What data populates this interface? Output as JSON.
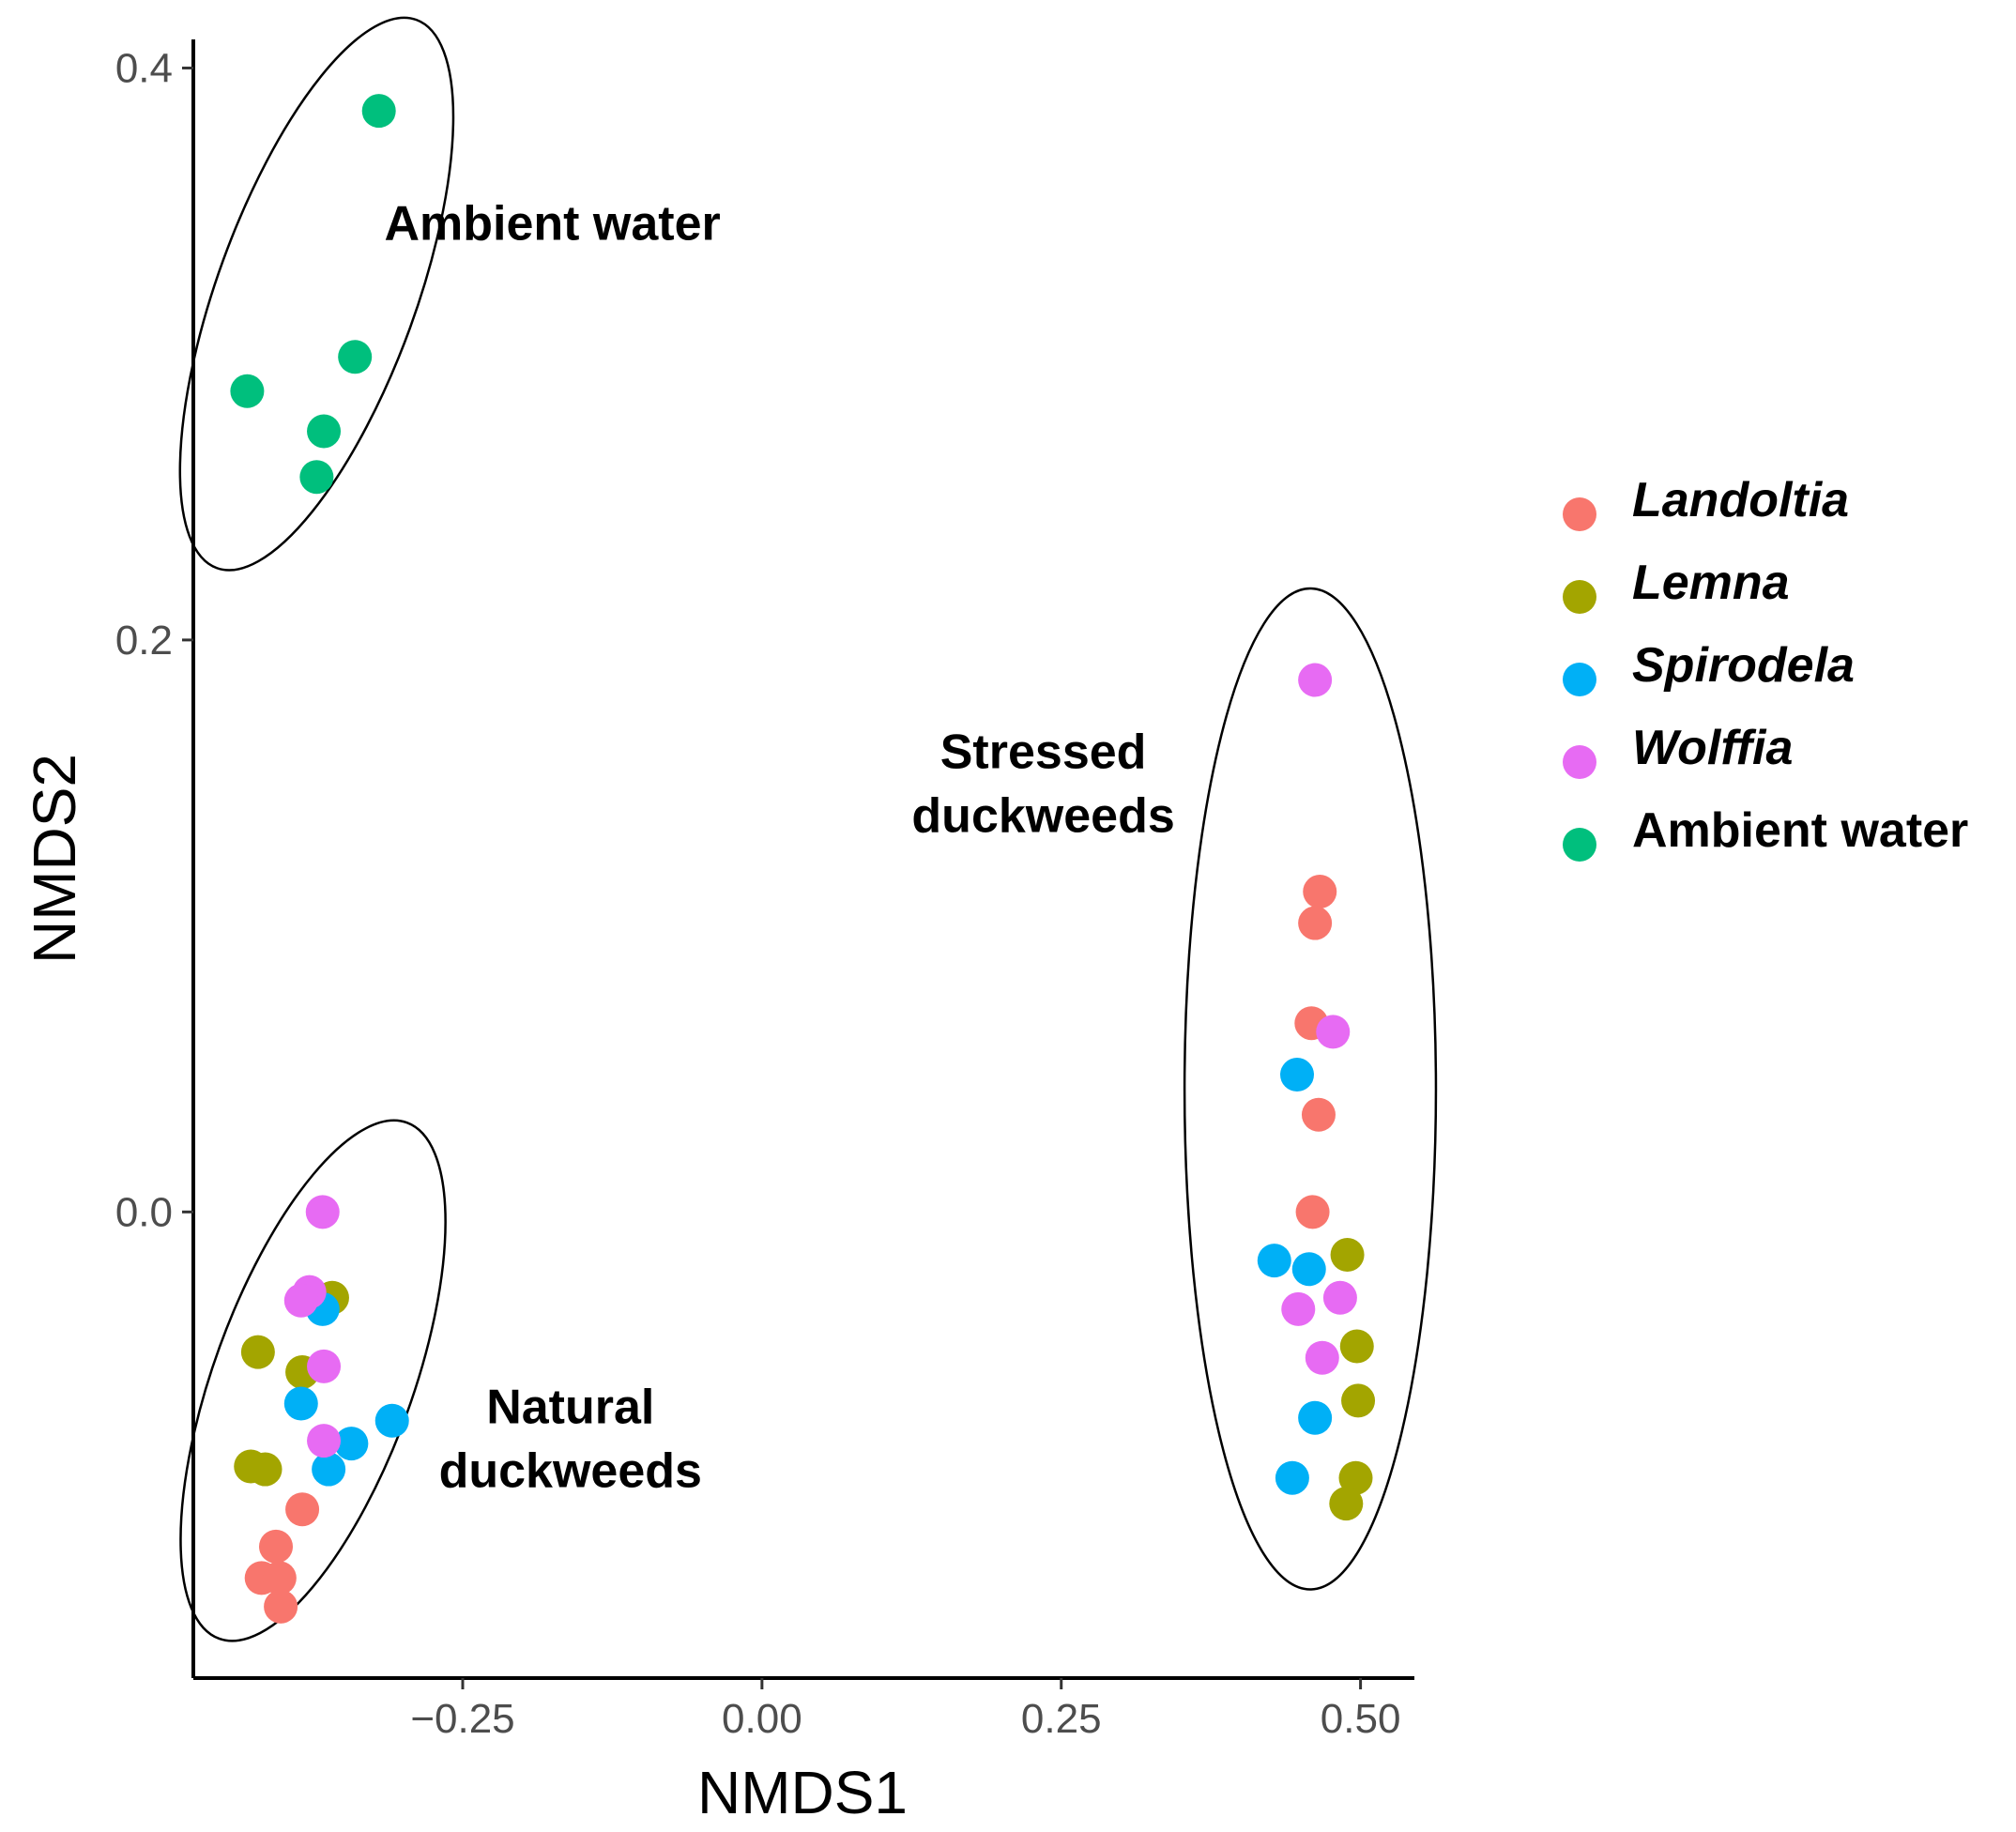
{
  "chart_data": {
    "type": "scatter",
    "title": "",
    "xlabel": "NMDS1",
    "ylabel": "NMDS2",
    "xlim": [
      -0.475,
      0.545
    ],
    "ylim": [
      -0.163,
      0.41
    ],
    "xticks": [
      {
        "value": -0.25,
        "label": "−0.25"
      },
      {
        "value": 0.0,
        "label": "0.00"
      },
      {
        "value": 0.25,
        "label": "0.25"
      },
      {
        "value": 0.5,
        "label": "0.50"
      }
    ],
    "yticks": [
      {
        "value": 0.0,
        "label": "0.0"
      },
      {
        "value": 0.2,
        "label": "0.2"
      },
      {
        "value": 0.4,
        "label": "0.4"
      }
    ],
    "grid": false,
    "legend_position": "right",
    "series": [
      {
        "name": "Landoltia",
        "italic": true,
        "color": "#F8766D",
        "points": [
          [
            -0.384,
            -0.104
          ],
          [
            -0.406,
            -0.117
          ],
          [
            -0.418,
            -0.128
          ],
          [
            -0.403,
            -0.128
          ],
          [
            -0.402,
            -0.138
          ],
          [
            0.466,
            0.112
          ],
          [
            0.462,
            0.101
          ],
          [
            0.459,
            0.066
          ],
          [
            0.465,
            0.034
          ],
          [
            0.46,
            0.0
          ]
        ]
      },
      {
        "name": "Lemna",
        "italic": true,
        "color": "#A3A500",
        "points": [
          [
            -0.359,
            -0.03
          ],
          [
            -0.421,
            -0.049
          ],
          [
            -0.384,
            -0.056
          ],
          [
            -0.427,
            -0.089
          ],
          [
            -0.415,
            -0.09
          ],
          [
            0.489,
            -0.015
          ],
          [
            0.497,
            -0.047
          ],
          [
            0.498,
            -0.066
          ],
          [
            0.496,
            -0.093
          ],
          [
            0.488,
            -0.102
          ]
        ]
      },
      {
        "name": "Spirodela",
        "italic": true,
        "color": "#00B0F6",
        "points": [
          [
            -0.367,
            -0.034
          ],
          [
            -0.385,
            -0.067
          ],
          [
            -0.309,
            -0.073
          ],
          [
            -0.343,
            -0.081
          ],
          [
            -0.362,
            -0.09
          ],
          [
            0.447,
            0.048
          ],
          [
            0.428,
            -0.017
          ],
          [
            0.457,
            -0.02
          ],
          [
            0.462,
            -0.072
          ],
          [
            0.443,
            -0.093
          ]
        ]
      },
      {
        "name": "Wolffia",
        "italic": true,
        "color": "#E76BF3",
        "points": [
          [
            -0.367,
            0.0
          ],
          [
            -0.378,
            -0.028
          ],
          [
            -0.385,
            -0.031
          ],
          [
            -0.366,
            -0.054
          ],
          [
            -0.366,
            -0.08
          ],
          [
            0.462,
            0.186
          ],
          [
            0.477,
            0.063
          ],
          [
            0.483,
            -0.03
          ],
          [
            0.448,
            -0.034
          ],
          [
            0.468,
            -0.051
          ]
        ]
      },
      {
        "name": "Ambient water",
        "italic": false,
        "color": "#00BF7D",
        "points": [
          [
            -0.32,
            0.385
          ],
          [
            -0.34,
            0.299
          ],
          [
            -0.43,
            0.287
          ],
          [
            -0.366,
            0.273
          ],
          [
            -0.372,
            0.257
          ]
        ]
      }
    ],
    "ellipses": [
      {
        "label": "Ambient water",
        "cx": -0.372,
        "cy": 0.321,
        "rx": 0.083,
        "ry": 0.102,
        "rotation": 20
      },
      {
        "label": "Natural duckweeds",
        "cx": -0.375,
        "cy": -0.059,
        "rx": 0.083,
        "ry": 0.096,
        "rotation": 20
      },
      {
        "label": "Stressed duckweeds",
        "cx": 0.458,
        "cy": 0.043,
        "rx": 0.105,
        "ry": 0.175,
        "rotation": 0
      }
    ],
    "annotations": [
      {
        "lines": [
          "Ambient water"
        ],
        "x": -0.175,
        "y": 0.34
      },
      {
        "lines": [
          "Natural",
          "duckweeds"
        ],
        "x": -0.16,
        "y": -0.085
      },
      {
        "lines": [
          "Stressed",
          "duckweeds"
        ],
        "x": 0.235,
        "y": 0.144
      }
    ]
  }
}
